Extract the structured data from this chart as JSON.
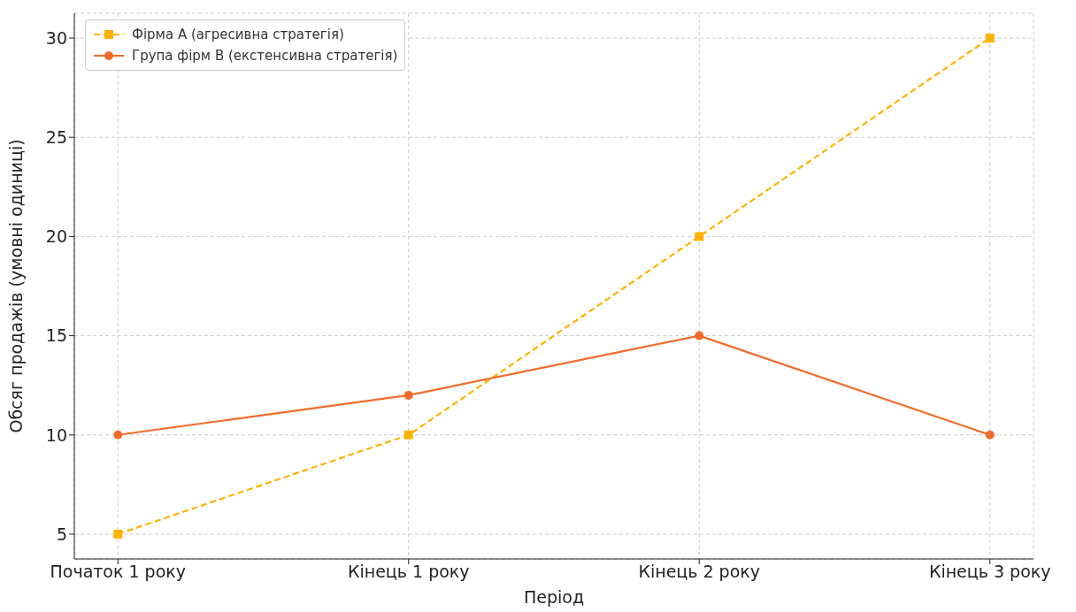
{
  "chart_data": {
    "type": "line",
    "xlabel": "Період",
    "ylabel": "Обсяг продажів (умовні одиниці)",
    "categories": [
      "Початок 1 року",
      "Кінець 1 року",
      "Кінець 2 року",
      "Кінець 3 року"
    ],
    "series": [
      {
        "name": "Фірма A (агресивна стратегія)",
        "color": "#ffb300",
        "values": [
          5,
          10,
          20,
          30
        ],
        "marker": "square",
        "line_style": "dashed"
      },
      {
        "name": "Група фірм B (екстенсивна стратегія)",
        "color": "#f26b2a",
        "values": [
          10,
          12,
          15,
          10
        ],
        "marker": "circle",
        "line_style": "solid"
      }
    ],
    "ylim": [
      3.75,
      31.25
    ],
    "yticks": [
      5,
      10,
      15,
      20,
      25,
      30
    ],
    "grid": true,
    "legend": "top left"
  }
}
